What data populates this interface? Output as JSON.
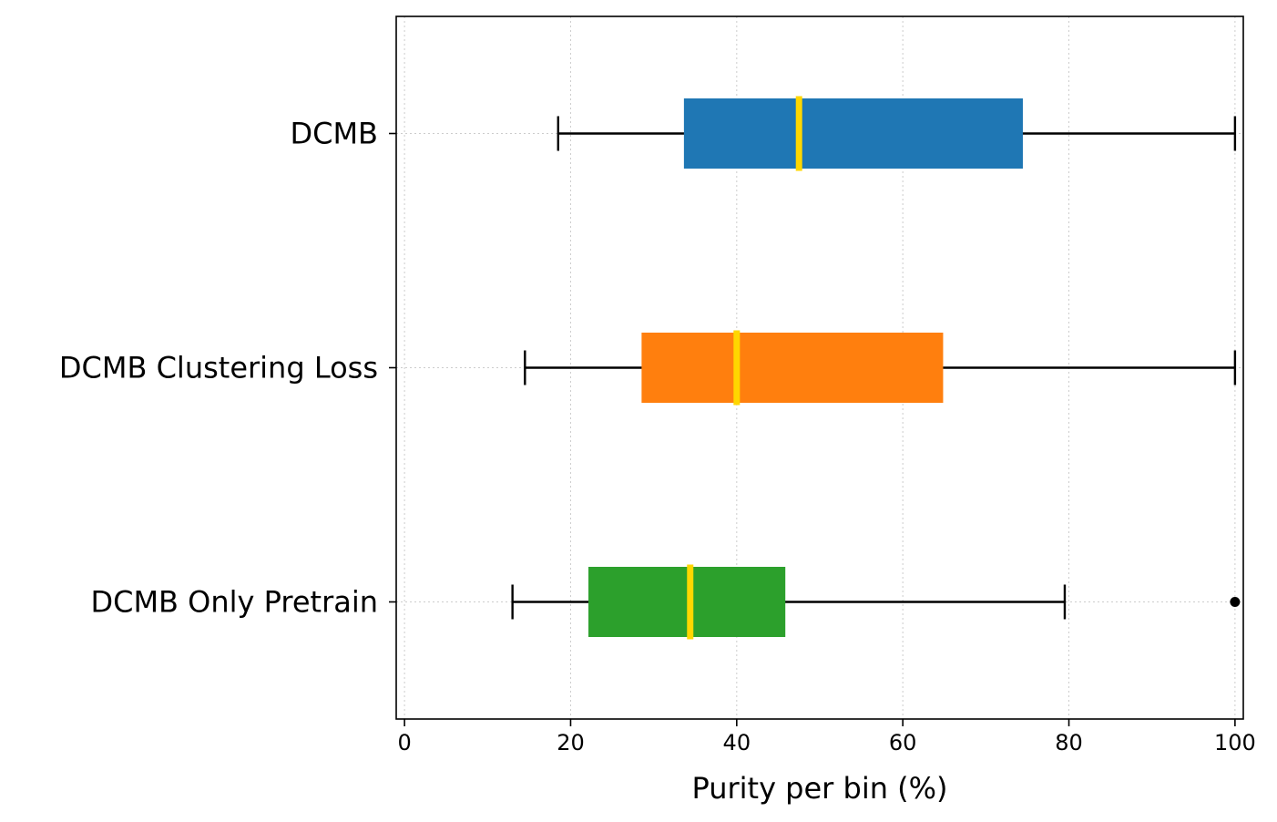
{
  "chart_data": {
    "type": "boxplot",
    "orientation": "horizontal",
    "title": "",
    "xlabel": "Purity per bin (%)",
    "ylabel": "",
    "xlim": [
      -1,
      101
    ],
    "x_ticks": [
      0,
      20,
      40,
      60,
      80,
      100
    ],
    "grid": true,
    "median_color": "#ffd700",
    "series": [
      {
        "name": "DCMB",
        "whisker_low": 18.5,
        "q1": 33.7,
        "median": 47.5,
        "q3": 74.4,
        "whisker_high": 100,
        "outliers": [],
        "color": "#1f77b4"
      },
      {
        "name": "DCMB Clustering Loss",
        "whisker_low": 14.5,
        "q1": 28.6,
        "median": 40.0,
        "q3": 64.8,
        "whisker_high": 100,
        "outliers": [],
        "color": "#ff7f0e"
      },
      {
        "name": "DCMB Only Pretrain",
        "whisker_low": 13.0,
        "q1": 22.2,
        "median": 34.4,
        "q3": 45.8,
        "whisker_high": 79.5,
        "outliers": [
          100
        ],
        "color": "#2ca02c"
      }
    ]
  }
}
